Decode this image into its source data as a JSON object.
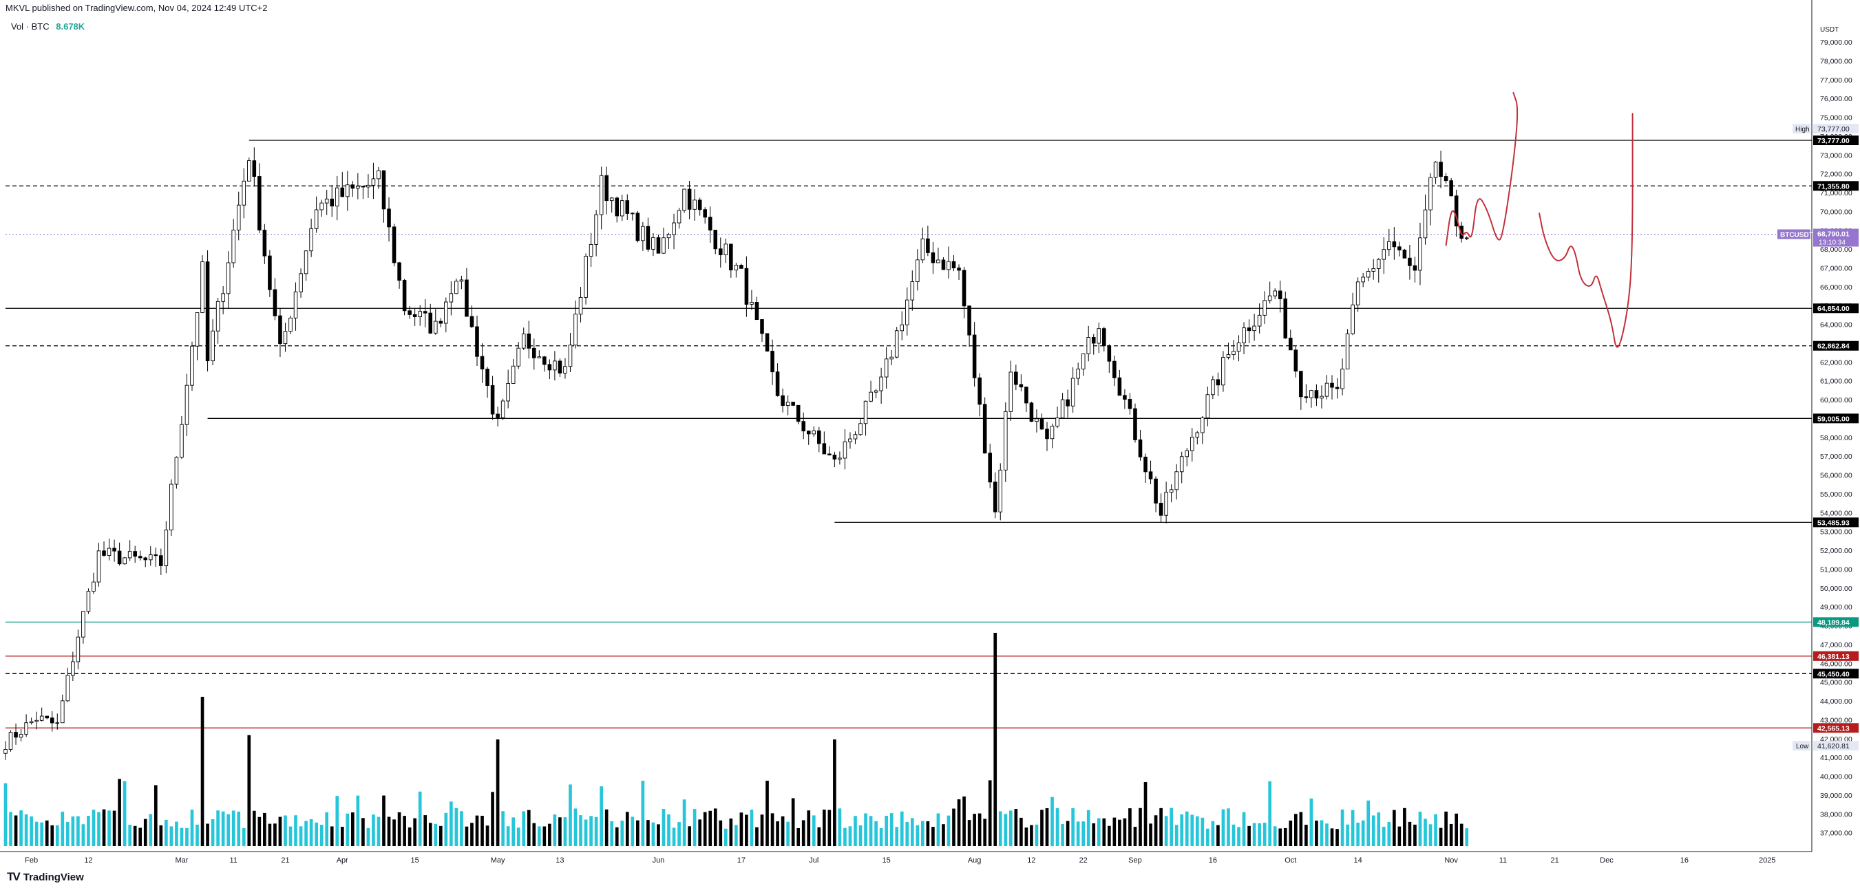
{
  "header": {
    "published": "MKVL published on TradingView.com, Nov 04, 2024 12:49 UTC+2"
  },
  "volume_legend": {
    "label": "Vol · BTC",
    "value": "8.678K"
  },
  "footer": {
    "brand": "TradingView",
    "logo": "TV"
  },
  "colors": {
    "up_volume": "#26c6da",
    "down_volume": "#000000",
    "candle_up": "#ffffff",
    "candle_down": "#000000",
    "green_level": "#089981",
    "red_level": "#b71c1c",
    "current_price_label": "#9575cd",
    "drawing": "#c2303a"
  },
  "chart_data": {
    "type": "candlestick",
    "currency": "USDT",
    "ylim": [
      36000,
      80500
    ],
    "y_ticks": [
      "79,000.00",
      "78,000.00",
      "77,000.00",
      "76,000.00",
      "75,000.00",
      "74,000.00",
      "73,000.00",
      "72,000.00",
      "71,000.00",
      "70,000.00",
      "69,000.00",
      "68,000.00",
      "67,000.00",
      "66,000.00",
      "65,000.00",
      "64,000.00",
      "63,000.00",
      "62,000.00",
      "61,000.00",
      "60,000.00",
      "59,000.00",
      "58,000.00",
      "57,000.00",
      "56,000.00",
      "55,000.00",
      "54,000.00",
      "53,000.00",
      "52,000.00",
      "51,000.00",
      "50,000.00",
      "49,000.00",
      "48,000.00",
      "47,000.00",
      "46,000.00",
      "45,000.00",
      "44,000.00",
      "43,000.00",
      "42,000.00",
      "41,000.00",
      "40,000.00",
      "39,000.00",
      "38,000.00",
      "37,000.00"
    ],
    "x_ticks": [
      {
        "label": "Feb",
        "date": "2024-02-01"
      },
      {
        "label": "12",
        "date": "2024-02-12"
      },
      {
        "label": "Mar",
        "date": "2024-03-01"
      },
      {
        "label": "11",
        "date": "2024-03-11"
      },
      {
        "label": "21",
        "date": "2024-03-21"
      },
      {
        "label": "Apr",
        "date": "2024-04-01"
      },
      {
        "label": "15",
        "date": "2024-04-15"
      },
      {
        "label": "May",
        "date": "2024-05-01"
      },
      {
        "label": "13",
        "date": "2024-05-13"
      },
      {
        "label": "Jun",
        "date": "2024-06-01"
      },
      {
        "label": "17",
        "date": "2024-06-17"
      },
      {
        "label": "Jul",
        "date": "2024-07-01"
      },
      {
        "label": "15",
        "date": "2024-07-15"
      },
      {
        "label": "Aug",
        "date": "2024-08-01"
      },
      {
        "label": "12",
        "date": "2024-08-12"
      },
      {
        "label": "22",
        "date": "2024-08-22"
      },
      {
        "label": "Sep",
        "date": "2024-09-01"
      },
      {
        "label": "16",
        "date": "2024-09-16"
      },
      {
        "label": "Oct",
        "date": "2024-10-01"
      },
      {
        "label": "14",
        "date": "2024-10-14"
      },
      {
        "label": "Nov",
        "date": "2024-11-01"
      },
      {
        "label": "11",
        "date": "2024-11-11"
      },
      {
        "label": "21",
        "date": "2024-11-21"
      },
      {
        "label": "Dec",
        "date": "2024-12-01"
      },
      {
        "label": "16",
        "date": "2024-12-16"
      },
      {
        "label": "2025",
        "date": "2025-01-01"
      }
    ],
    "price_waypoints": [
      {
        "date": "2024-01-27",
        "price": 41800
      },
      {
        "date": "2024-02-02",
        "price": 43100
      },
      {
        "date": "2024-02-06",
        "price": 42700
      },
      {
        "date": "2024-02-10",
        "price": 47500
      },
      {
        "date": "2024-02-14",
        "price": 51800
      },
      {
        "date": "2024-02-26",
        "price": 51300
      },
      {
        "date": "2024-03-05",
        "price": 66800
      },
      {
        "date": "2024-03-06",
        "price": 62000
      },
      {
        "date": "2024-03-14",
        "price": 73100
      },
      {
        "date": "2024-03-20",
        "price": 62500
      },
      {
        "date": "2024-03-27",
        "price": 70300
      },
      {
        "date": "2024-04-08",
        "price": 71600
      },
      {
        "date": "2024-04-13",
        "price": 64900
      },
      {
        "date": "2024-04-19",
        "price": 63800
      },
      {
        "date": "2024-04-23",
        "price": 66800
      },
      {
        "date": "2024-05-01",
        "price": 58600
      },
      {
        "date": "2024-05-06",
        "price": 63200
      },
      {
        "date": "2024-05-14",
        "price": 61500
      },
      {
        "date": "2024-05-21",
        "price": 71400
      },
      {
        "date": "2024-06-01",
        "price": 67700
      },
      {
        "date": "2024-06-06",
        "price": 71100
      },
      {
        "date": "2024-06-17",
        "price": 66500
      },
      {
        "date": "2024-06-24",
        "price": 60300
      },
      {
        "date": "2024-07-05",
        "price": 56600
      },
      {
        "date": "2024-07-14",
        "price": 60800
      },
      {
        "date": "2024-07-22",
        "price": 68000
      },
      {
        "date": "2024-07-29",
        "price": 66800
      },
      {
        "date": "2024-08-05",
        "price": 54000
      },
      {
        "date": "2024-08-08",
        "price": 61700
      },
      {
        "date": "2024-08-15",
        "price": 57500
      },
      {
        "date": "2024-08-25",
        "price": 64200
      },
      {
        "date": "2024-09-06",
        "price": 53900
      },
      {
        "date": "2024-09-12",
        "price": 58100
      },
      {
        "date": "2024-09-20",
        "price": 63000
      },
      {
        "date": "2024-09-28",
        "price": 65800
      },
      {
        "date": "2024-10-03",
        "price": 60700
      },
      {
        "date": "2024-10-10",
        "price": 60300
      },
      {
        "date": "2024-10-14",
        "price": 65900
      },
      {
        "date": "2024-10-20",
        "price": 68400
      },
      {
        "date": "2024-10-25",
        "price": 66600
      },
      {
        "date": "2024-10-29",
        "price": 72700
      },
      {
        "date": "2024-11-02",
        "price": 69400
      },
      {
        "date": "2024-11-04",
        "price": 68790
      }
    ],
    "volume_spikes": [
      {
        "date": "2024-03-05",
        "kind": "down",
        "rel": 0.7
      },
      {
        "date": "2024-08-05",
        "kind": "down",
        "rel": 1.0
      },
      {
        "date": "2024-03-14",
        "kind": "down",
        "rel": 0.52
      },
      {
        "date": "2024-07-05",
        "kind": "down",
        "rel": 0.5
      },
      {
        "date": "2024-05-01",
        "kind": "down",
        "rel": 0.5
      }
    ],
    "horizontal_levels": [
      {
        "price": 73777.0,
        "label": "73,777.00",
        "style": "solid",
        "color": "#000000",
        "start": "2024-03-14",
        "extra_label": "High"
      },
      {
        "price": 71355.8,
        "label": "71,355.80",
        "style": "dashed",
        "color": "#000000",
        "start": "2024-01-27"
      },
      {
        "price": 64854.0,
        "label": "64,854.00",
        "style": "solid",
        "color": "#000000",
        "start": "2024-01-27"
      },
      {
        "price": 62862.84,
        "label": "62,862.84",
        "style": "dashed",
        "color": "#000000",
        "start": "2024-01-27"
      },
      {
        "price": 59005.0,
        "label": "59,005.00",
        "style": "solid",
        "color": "#000000",
        "start": "2024-03-06"
      },
      {
        "price": 53485.93,
        "label": "53,485.93",
        "style": "solid",
        "color": "#000000",
        "start": "2024-07-05"
      },
      {
        "price": 48189.84,
        "label": "48,189.84",
        "style": "solid",
        "color": "#089981",
        "start": "2024-01-27"
      },
      {
        "price": 46381.13,
        "label": "46,381.13",
        "style": "solid",
        "color": "#b71c1c",
        "start": "2024-01-27"
      },
      {
        "price": 45450.4,
        "label": "45,450.40",
        "style": "dashed",
        "color": "#000000",
        "start": "2024-01-27"
      },
      {
        "price": 42565.13,
        "label": "42,565.13",
        "style": "solid",
        "color": "#b71c1c",
        "start": "2024-01-27"
      }
    ],
    "current_price": {
      "price": 68790.01,
      "value_label": "68,790.01",
      "symbol_label": "BTCUSDT",
      "countdown": "13:10:34"
    },
    "low_marker": {
      "price": 41620.81,
      "label": "41,620.81",
      "tag": "Low"
    },
    "drawings": [
      {
        "name": "projection-short-path",
        "points": [
          {
            "date": "2024-10-31",
            "price": 68200
          },
          {
            "date": "2024-11-01",
            "price": 70200
          },
          {
            "date": "2024-11-02",
            "price": 69800
          },
          {
            "date": "2024-11-03",
            "price": 68600
          },
          {
            "date": "2024-11-04",
            "price": 69000
          },
          {
            "date": "2024-11-05",
            "price": 68400
          },
          {
            "date": "2024-11-06",
            "price": 71000
          },
          {
            "date": "2024-11-08",
            "price": 70100
          },
          {
            "date": "2024-11-10",
            "price": 68300
          },
          {
            "date": "2024-11-11",
            "price": 68800
          },
          {
            "date": "2024-11-13",
            "price": 72500
          },
          {
            "date": "2024-11-14",
            "price": 75500
          },
          {
            "date": "2024-11-13",
            "price": 76300
          }
        ]
      },
      {
        "name": "projection-long-path",
        "points": [
          {
            "date": "2024-11-18",
            "price": 69900
          },
          {
            "date": "2024-11-19",
            "price": 68500
          },
          {
            "date": "2024-11-21",
            "price": 67300
          },
          {
            "date": "2024-11-23",
            "price": 67500
          },
          {
            "date": "2024-11-24",
            "price": 68300
          },
          {
            "date": "2024-11-25",
            "price": 67800
          },
          {
            "date": "2024-11-26",
            "price": 66300
          },
          {
            "date": "2024-11-28",
            "price": 65900
          },
          {
            "date": "2024-11-29",
            "price": 66800
          },
          {
            "date": "2024-11-30",
            "price": 65800
          },
          {
            "date": "2024-12-02",
            "price": 64100
          },
          {
            "date": "2024-12-03",
            "price": 62300
          },
          {
            "date": "2024-12-05",
            "price": 64500
          },
          {
            "date": "2024-12-06",
            "price": 67600
          },
          {
            "date": "2024-12-06",
            "price": 75200
          }
        ]
      }
    ],
    "grid": false,
    "legend": "top-left"
  }
}
